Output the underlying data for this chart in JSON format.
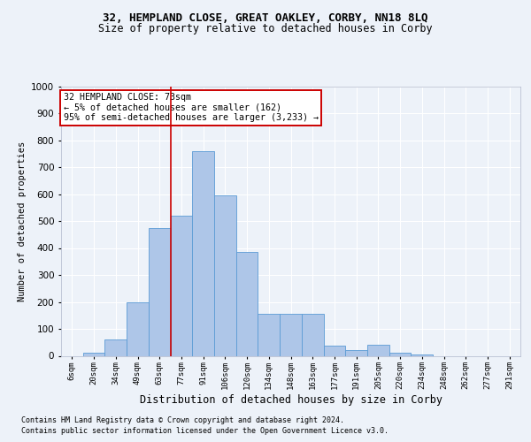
{
  "title1": "32, HEMPLAND CLOSE, GREAT OAKLEY, CORBY, NN18 8LQ",
  "title2": "Size of property relative to detached houses in Corby",
  "xlabel": "Distribution of detached houses by size in Corby",
  "ylabel": "Number of detached properties",
  "footnote1": "Contains HM Land Registry data © Crown copyright and database right 2024.",
  "footnote2": "Contains public sector information licensed under the Open Government Licence v3.0.",
  "annotation_title": "32 HEMPLAND CLOSE: 73sqm",
  "annotation_line1": "← 5% of detached houses are smaller (162)",
  "annotation_line2": "95% of semi-detached houses are larger (3,233) →",
  "bar_labels": [
    "6sqm",
    "20sqm",
    "34sqm",
    "49sqm",
    "63sqm",
    "77sqm",
    "91sqm",
    "106sqm",
    "120sqm",
    "134sqm",
    "148sqm",
    "163sqm",
    "177sqm",
    "191sqm",
    "205sqm",
    "220sqm",
    "234sqm",
    "248sqm",
    "262sqm",
    "277sqm",
    "291sqm"
  ],
  "bar_values": [
    0,
    10,
    60,
    200,
    475,
    520,
    760,
    595,
    385,
    155,
    155,
    155,
    37,
    22,
    40,
    10,
    5,
    0,
    0,
    0,
    0
  ],
  "bar_color": "#aec6e8",
  "bar_edge_color": "#5b9bd5",
  "vline_x": 4.5,
  "vline_color": "#cc0000",
  "annotation_box_color": "#cc0000",
  "ylim": [
    0,
    1000
  ],
  "yticks": [
    0,
    100,
    200,
    300,
    400,
    500,
    600,
    700,
    800,
    900,
    1000
  ],
  "bg_color": "#edf2f9",
  "plot_bg": "#edf2f9",
  "grid_color": "#ffffff",
  "title1_fontsize": 9,
  "title2_fontsize": 8.5,
  "ylabel_fontsize": 7.5,
  "xlabel_fontsize": 8.5,
  "ytick_fontsize": 7.5,
  "xtick_fontsize": 6.5,
  "annot_fontsize": 7.2,
  "footnote_fontsize": 6.0
}
